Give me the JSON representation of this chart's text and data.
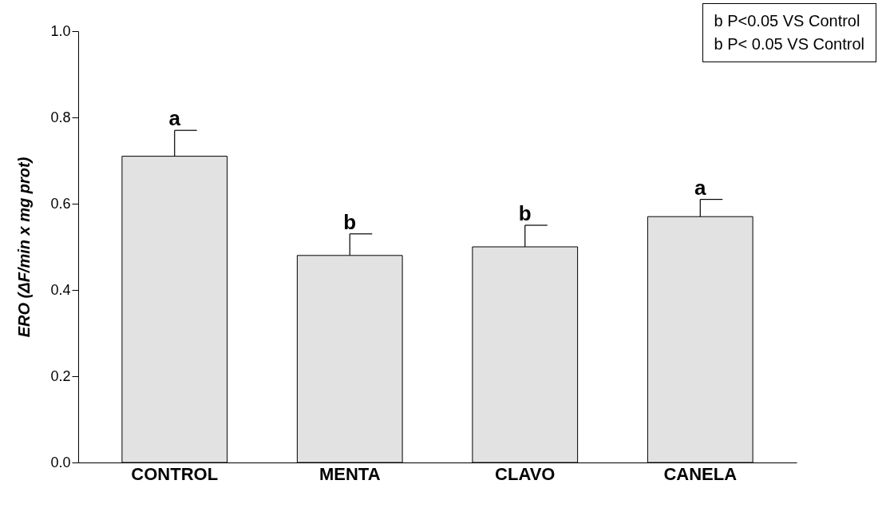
{
  "chart_data": {
    "type": "bar",
    "ylabel": "ERO (ΔF/min x mg prot)",
    "categories": [
      "CONTROL",
      "MENTA",
      "CLAVO",
      "CANELA"
    ],
    "values": [
      0.71,
      0.48,
      0.5,
      0.57
    ],
    "errors": [
      0.06,
      0.05,
      0.05,
      0.04
    ],
    "colors": [
      "#e2e2e2",
      "#e2e2e2",
      "#e2e2e2",
      "#e2e2e2"
    ],
    "ylim": [
      0,
      1
    ],
    "yticks": [
      {
        "value": 0,
        "label": "0.0"
      },
      {
        "value": 0.2,
        "label": "0.2"
      },
      {
        "value": 0.4,
        "label": "0.4"
      },
      {
        "value": 0.6,
        "label": "0.6"
      },
      {
        "value": 0.8,
        "label": "0.8"
      },
      {
        "value": 1,
        "label": "1.0"
      }
    ],
    "grid": false,
    "annotations": [
      {
        "text": "a",
        "x": "CONTROL",
        "y": 0.77
      },
      {
        "text": "b",
        "x": "MENTA",
        "y": 0.53
      },
      {
        "text": "b",
        "x": "CLAVO",
        "y": 0.55
      },
      {
        "text": "a",
        "x": "CANELA",
        "y": 0.61
      },
      "b P<0.05 VS Control",
      "b P< 0.05 VS Control"
    ]
  }
}
